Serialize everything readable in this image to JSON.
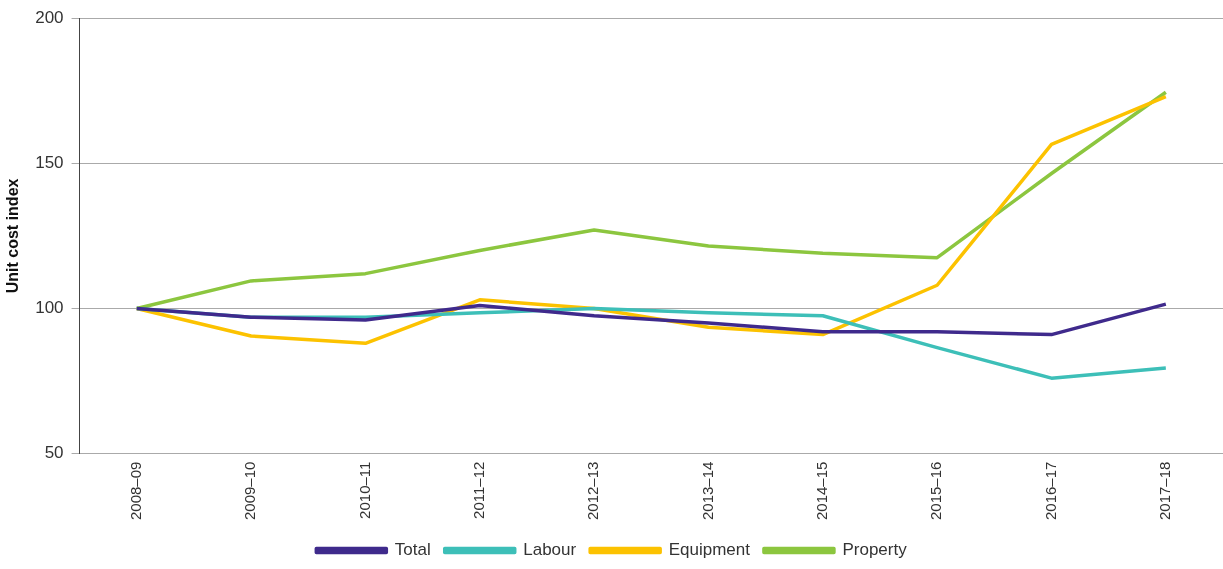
{
  "chart_data": {
    "type": "line",
    "ylabel": "Unit cost index",
    "categories": [
      "2008–09",
      "2009–10",
      "2010–11",
      "2011–12",
      "2012–13",
      "2013–14",
      "2014–15",
      "2015–16",
      "2016–17",
      "2017–18"
    ],
    "series": [
      {
        "name": "Total",
        "color": "#3f2a8c",
        "values": [
          100,
          97,
          96,
          101,
          97.5,
          95,
          92,
          92,
          91,
          101.5
        ]
      },
      {
        "name": "Labour",
        "color": "#3dbfb8",
        "values": [
          100,
          97,
          97,
          98.5,
          100,
          98.5,
          97.5,
          86.5,
          76,
          79.5
        ]
      },
      {
        "name": "Equipment",
        "color": "#fcc200",
        "values": [
          100,
          90.5,
          88,
          103,
          100,
          93.5,
          91,
          108,
          156.5,
          173
        ]
      },
      {
        "name": "Property",
        "color": "#8cc63f",
        "values": [
          100,
          109.5,
          112,
          120,
          127,
          121.5,
          119,
          117.5,
          146.5,
          174.5
        ]
      }
    ],
    "ylim": [
      50,
      200
    ],
    "yticks": [
      50,
      100,
      150,
      200
    ],
    "grid": "y",
    "legend": "bottom",
    "marker": "none",
    "line_style": "solid"
  }
}
